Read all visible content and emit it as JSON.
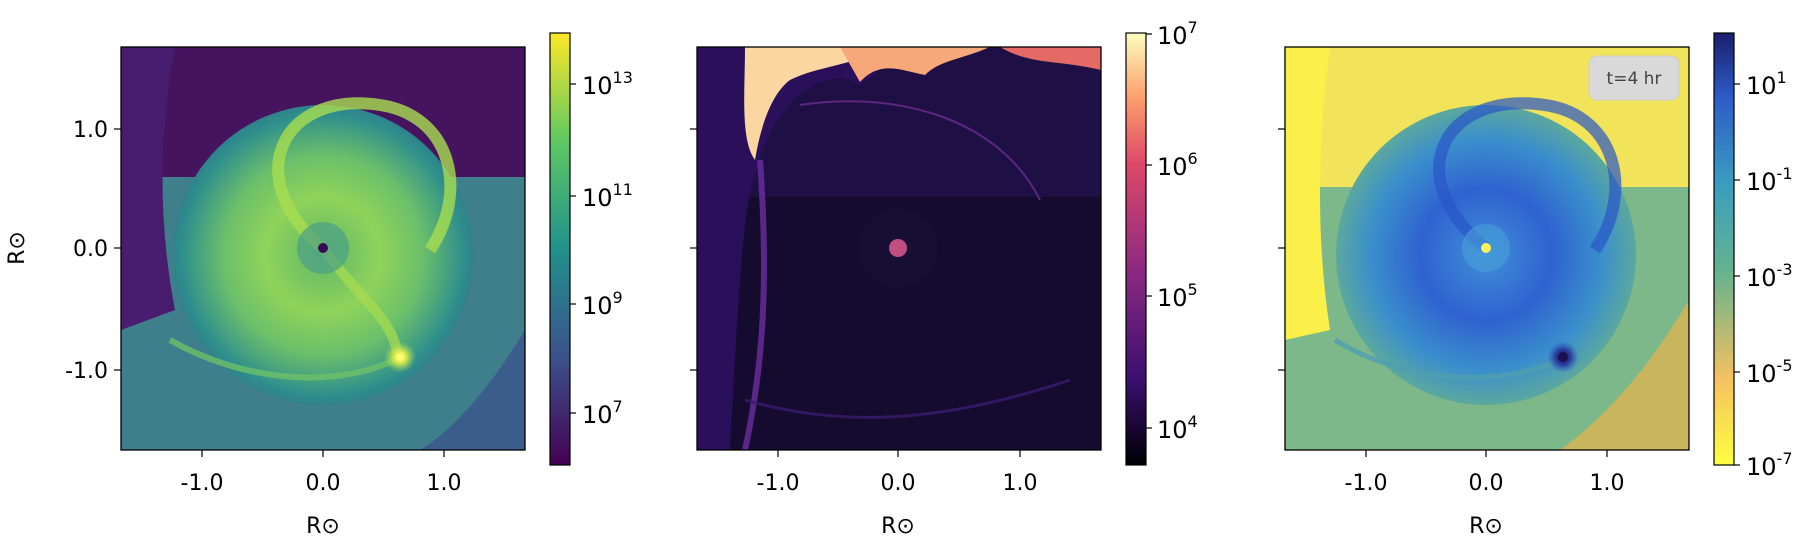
{
  "chart_data": [
    {
      "type": "heatmap",
      "panel": "left",
      "xlabel": "R⊙",
      "ylabel": "R⊙",
      "x_ticks": [
        "-1.0",
        "0.0",
        "1.0"
      ],
      "y_ticks": [
        "1.0",
        "0.0",
        "-1.0"
      ],
      "xlim": [
        -1.65,
        1.65
      ],
      "ylim": [
        -1.65,
        1.65
      ],
      "colorbar": {
        "scale": "log",
        "colormap": "viridis",
        "range": [
          1000000.0,
          100000000000000.0
        ],
        "ticks": [
          {
            "b": "10",
            "e": "7"
          },
          {
            "b": "10",
            "e": "9"
          },
          {
            "b": "10",
            "e": "11"
          },
          {
            "b": "10",
            "e": "13"
          }
        ]
      }
    },
    {
      "type": "heatmap",
      "panel": "middle",
      "xlabel": "R⊙",
      "ylabel": "",
      "x_ticks": [
        "-1.0",
        "0.0",
        "1.0"
      ],
      "xlim": [
        -1.65,
        1.65
      ],
      "ylim": [
        -1.65,
        1.65
      ],
      "colorbar": {
        "scale": "log",
        "colormap": "magma",
        "range": [
          5500,
          10000000.0
        ],
        "ticks": [
          {
            "b": "10",
            "e": "4"
          },
          {
            "b": "10",
            "e": "5"
          },
          {
            "b": "10",
            "e": "6"
          },
          {
            "b": "10",
            "e": "7"
          }
        ]
      }
    },
    {
      "type": "heatmap",
      "panel": "right",
      "xlabel": "R⊙",
      "ylabel": "",
      "x_ticks": [
        "-1.0",
        "0.0",
        "1.0"
      ],
      "xlim": [
        -1.65,
        1.65
      ],
      "ylim": [
        -1.65,
        1.65
      ],
      "annotation": "t=4 hr",
      "colorbar": {
        "scale": "log",
        "colormap": "plasma_r-like",
        "range": [
          1e-07,
          100.0
        ],
        "ticks": [
          {
            "b": "10",
            "e": "-7"
          },
          {
            "b": "10",
            "e": "-5"
          },
          {
            "b": "10",
            "e": "-3"
          },
          {
            "b": "10",
            "e": "-1"
          },
          {
            "b": "10",
            "e": "1"
          }
        ]
      }
    }
  ],
  "colors": {
    "viridis": [
      "#440154",
      "#3b528b",
      "#21918c",
      "#5ec962",
      "#fde725"
    ],
    "magma": [
      "#000004",
      "#3b0f70",
      "#8c2981",
      "#de4968",
      "#fe9f6d",
      "#fcfdbf"
    ],
    "right": [
      "#ffff40",
      "#f5c060",
      "#63b38f",
      "#3a9dc0",
      "#2d5cc8",
      "#1b1e6e"
    ]
  }
}
